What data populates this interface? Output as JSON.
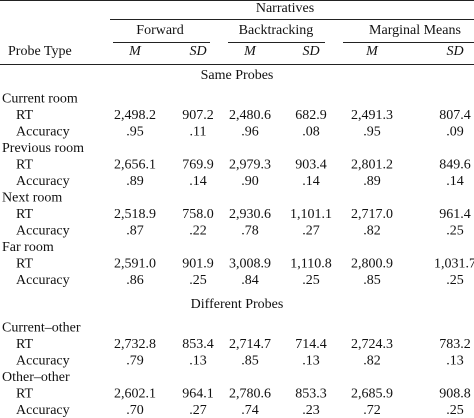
{
  "header": {
    "spanner": "Narratives",
    "row_label": "Probe Type",
    "groups": [
      "Forward",
      "Backtracking",
      "Marginal Means"
    ],
    "stats": [
      "M",
      "SD",
      "M",
      "SD",
      "M",
      "SD"
    ]
  },
  "sections": [
    {
      "title": "Same Probes",
      "groups": [
        {
          "label": "Current room",
          "rows": [
            {
              "label": "RT",
              "values": [
                "2,498.2",
                "907.2",
                "2,480.6",
                "682.9",
                "2,491.3",
                "807.4"
              ]
            },
            {
              "label": "Accuracy",
              "values": [
                ".95",
                ".11",
                ".96",
                ".08",
                ".95",
                ".09"
              ]
            }
          ]
        },
        {
          "label": "Previous room",
          "rows": [
            {
              "label": "RT",
              "values": [
                "2,656.1",
                "769.9",
                "2,979.3",
                "903.4",
                "2,801.2",
                "849.6"
              ]
            },
            {
              "label": "Accuracy",
              "values": [
                ".89",
                ".14",
                ".90",
                ".14",
                ".89",
                ".14"
              ]
            }
          ]
        },
        {
          "label": "Next room",
          "rows": [
            {
              "label": "RT",
              "values": [
                "2,518.9",
                "758.0",
                "2,930.6",
                "1,101.1",
                "2,717.0",
                "961.4"
              ]
            },
            {
              "label": "Accuracy",
              "values": [
                ".87",
                ".22",
                ".78",
                ".27",
                ".82",
                ".25"
              ]
            }
          ]
        },
        {
          "label": "Far room",
          "rows": [
            {
              "label": "RT",
              "values": [
                "2,591.0",
                "901.9",
                "3,008.9",
                "1,110.8",
                "2,800.9",
                "1,031.7"
              ]
            },
            {
              "label": "Accuracy",
              "values": [
                ".86",
                ".25",
                ".84",
                ".25",
                ".85",
                ".25"
              ]
            }
          ]
        }
      ]
    },
    {
      "title": "Different Probes",
      "groups": [
        {
          "label": "Current–other",
          "rows": [
            {
              "label": "RT",
              "values": [
                "2,732.8",
                "853.4",
                "2,714.7",
                "714.4",
                "2,724.3",
                "783.2"
              ]
            },
            {
              "label": "Accuracy",
              "values": [
                ".79",
                ".13",
                ".85",
                ".13",
                ".82",
                ".13"
              ]
            }
          ]
        },
        {
          "label": "Other–other",
          "rows": [
            {
              "label": "RT",
              "values": [
                "2,602.1",
                "964.1",
                "2,780.6",
                "853.3",
                "2,685.9",
                "908.8"
              ]
            },
            {
              "label": "Accuracy",
              "values": [
                ".70",
                ".27",
                ".74",
                ".23",
                ".72",
                ".25"
              ]
            }
          ]
        }
      ]
    }
  ]
}
